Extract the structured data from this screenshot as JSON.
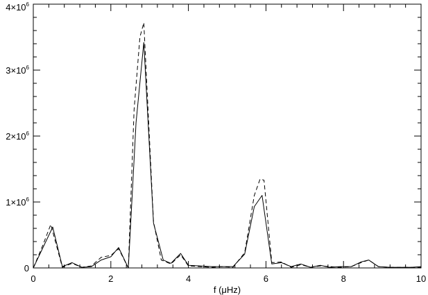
{
  "chart_data": {
    "type": "line",
    "title": "",
    "xlabel": "f (μHz)",
    "ylabel": "",
    "xlim": [
      0,
      10
    ],
    "ylim": [
      0,
      4000000
    ],
    "grid": false,
    "x_ticks": [
      0,
      2,
      4,
      6,
      8,
      10
    ],
    "x_tick_labels": [
      "0",
      "2",
      "4",
      "6",
      "8",
      "10"
    ],
    "y_ticks": [
      0,
      1000000,
      2000000,
      3000000,
      4000000
    ],
    "y_tick_labels": [
      {
        "base": "0",
        "exp": ""
      },
      {
        "base": "1×10",
        "exp": "6"
      },
      {
        "base": "2×10",
        "exp": "6"
      },
      {
        "base": "3×10",
        "exp": "6"
      },
      {
        "base": "4×10",
        "exp": "6"
      }
    ],
    "series": [
      {
        "style": "solid",
        "x": [
          0,
          0.5,
          0.75,
          1.0,
          1.25,
          1.5,
          1.75,
          2.0,
          2.2,
          2.45,
          2.65,
          2.85,
          3.1,
          3.35,
          3.55,
          3.8,
          4.0,
          4.3,
          4.6,
          4.9,
          5.15,
          5.45,
          5.7,
          5.9,
          6.15,
          6.4,
          6.65,
          6.9,
          7.15,
          7.4,
          7.65,
          7.9,
          8.2,
          8.45,
          8.65,
          8.9,
          9.2,
          9.5,
          9.75,
          10.0
        ],
        "y": [
          0,
          620000,
          20000,
          80000,
          10000,
          20000,
          120000,
          170000,
          310000,
          0,
          2200000,
          3420000,
          680000,
          120000,
          70000,
          220000,
          40000,
          30000,
          20000,
          20000,
          20000,
          210000,
          930000,
          1100000,
          60000,
          80000,
          20000,
          60000,
          10000,
          40000,
          10000,
          20000,
          20000,
          90000,
          120000,
          20000,
          10000,
          10000,
          10000,
          20000
        ]
      },
      {
        "style": "dashed",
        "x": [
          0,
          0.25,
          0.45,
          0.75,
          1.0,
          1.25,
          1.5,
          1.75,
          2.0,
          2.2,
          2.45,
          2.6,
          2.75,
          2.85,
          3.1,
          3.3,
          3.55,
          3.8,
          4.0,
          4.3,
          4.6,
          4.9,
          5.15,
          5.45,
          5.7,
          5.85,
          5.95,
          6.15,
          6.4,
          6.65,
          6.9,
          7.15,
          7.4,
          7.65,
          7.9,
          8.2,
          8.45,
          8.65,
          8.9,
          9.2,
          9.5,
          9.75,
          10.0
        ],
        "y": [
          0,
          350000,
          660000,
          10000,
          70000,
          10000,
          30000,
          160000,
          190000,
          290000,
          0,
          2400000,
          3500000,
          3720000,
          700000,
          120000,
          60000,
          200000,
          30000,
          20000,
          10000,
          20000,
          10000,
          230000,
          1100000,
          1350000,
          1330000,
          80000,
          90000,
          10000,
          50000,
          10000,
          30000,
          20000,
          10000,
          20000,
          80000,
          120000,
          20000,
          10000,
          10000,
          10000,
          10000
        ]
      }
    ]
  }
}
